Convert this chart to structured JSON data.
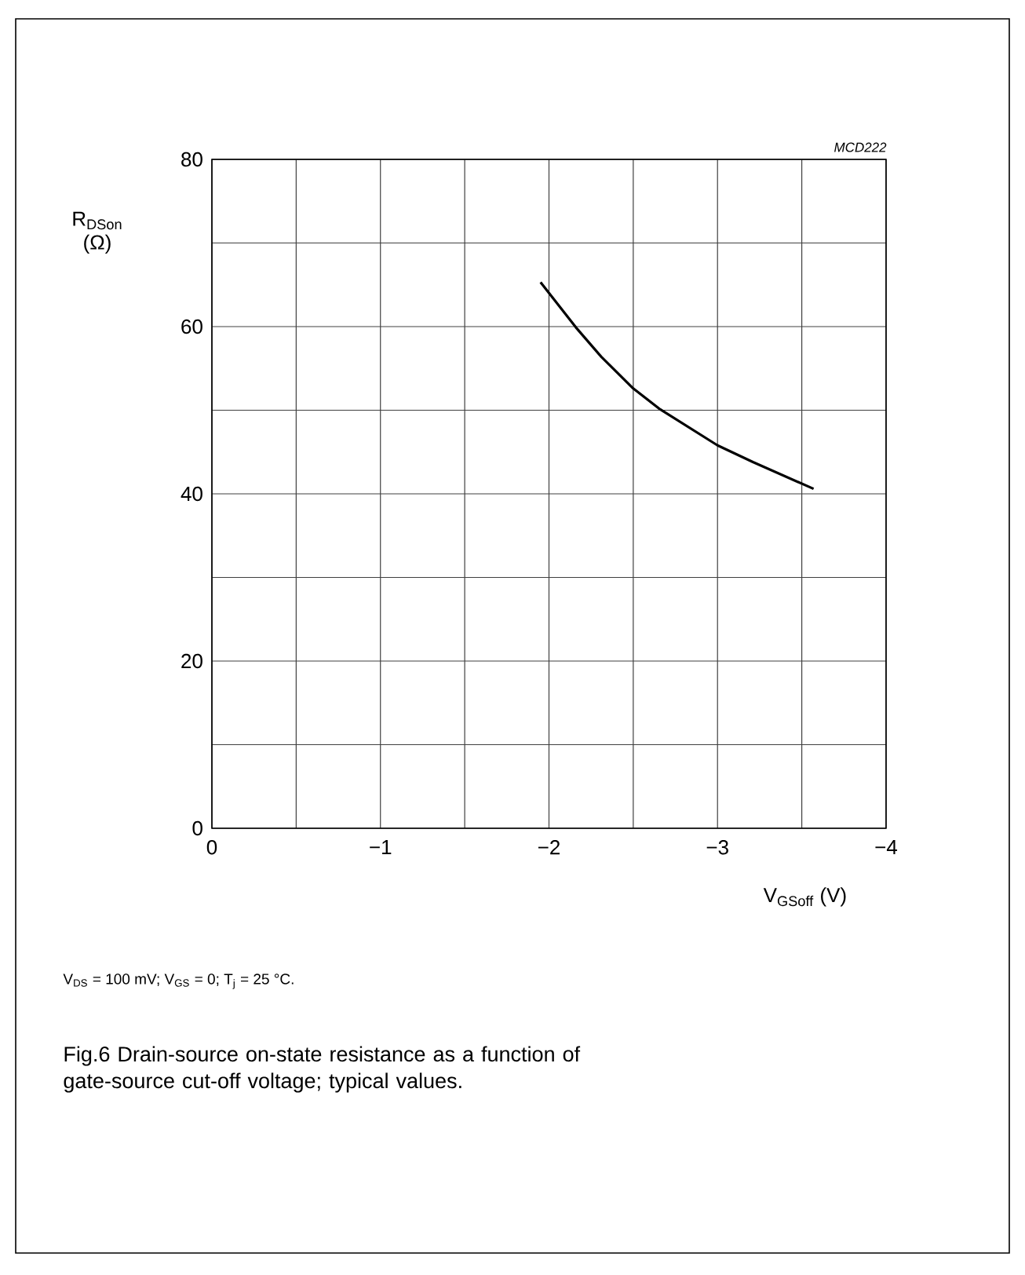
{
  "chart_data": {
    "type": "line",
    "title": "Fig.6 Drain-source on-state resistance as a function of gate-source cut-off voltage; typical values.",
    "xlabel": "V$_{GSoff}$ (V)",
    "ylabel": "R$_{DSon}$ (Ω)",
    "annotations": [
      "MCD222",
      "V$_{DS}$ = 100 mV; V$_{GS}$ = 0; T$_{j}$ = 25 °C."
    ],
    "series": [
      {
        "color": "#000000",
        "x": [
          -1.95,
          -2.16,
          -2.31,
          -2.5,
          -2.66,
          -3.0,
          -3.21,
          -3.57
        ],
        "values": [
          65.3,
          59.9,
          56.4,
          52.6,
          50.1,
          45.8,
          43.8,
          40.6
        ]
      }
    ],
    "xlim": [
      0,
      -4
    ],
    "xticks": [
      0,
      {
        "value": -0.5,
        "label": null
      },
      {
        "value": -1,
        "label": "−1"
      },
      {
        "value": -1.5,
        "label": null
      },
      {
        "value": -2,
        "label": "−2"
      },
      {
        "value": -2.5,
        "label": null
      },
      {
        "value": -3,
        "label": "−3"
      },
      {
        "value": -3.5,
        "label": null
      },
      {
        "value": -4,
        "label": "−4"
      }
    ],
    "ylim": [
      0,
      80
    ],
    "yticks": [
      0,
      {
        "value": 10,
        "label": null
      },
      20,
      {
        "value": 30,
        "label": null
      },
      40,
      {
        "value": 50,
        "label": null
      },
      60,
      {
        "value": 70,
        "label": null
      },
      80
    ],
    "grid": true,
    "marker": "none",
    "line_style": "solid"
  }
}
